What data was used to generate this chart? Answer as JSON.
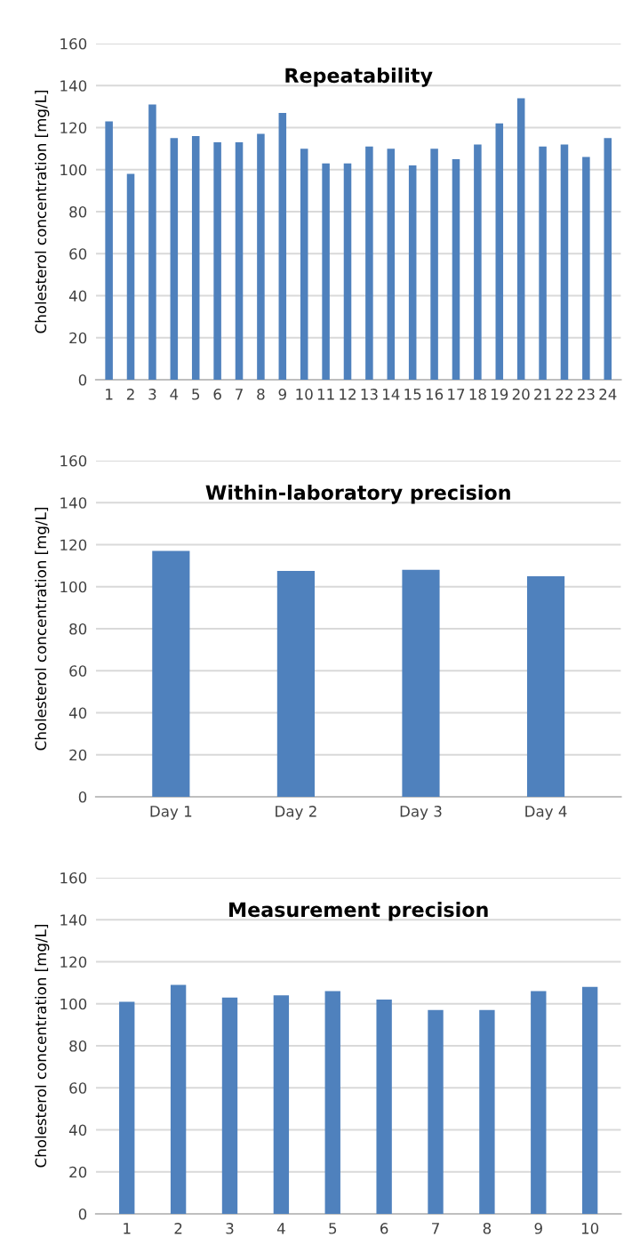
{
  "chart_data": [
    {
      "type": "bar",
      "title": "Repeatability",
      "ylabel": "Cholesterol concentration [mg/L]",
      "categories": [
        "1",
        "2",
        "3",
        "4",
        "5",
        "6",
        "7",
        "8",
        "9",
        "10",
        "11",
        "12",
        "13",
        "14",
        "15",
        "16",
        "17",
        "18",
        "19",
        "20",
        "21",
        "22",
        "23",
        "24"
      ],
      "values": [
        123,
        98,
        131,
        115,
        116,
        113,
        113,
        117,
        127,
        110,
        103,
        103,
        111,
        110,
        102,
        110,
        105,
        112,
        122,
        134,
        111,
        112,
        106,
        115
      ],
      "color": "#4f81bd",
      "ylim": [
        0,
        160
      ],
      "yticks": [
        0,
        20,
        40,
        60,
        80,
        100,
        120,
        140,
        160
      ],
      "grid": "y"
    },
    {
      "type": "bar",
      "title": "Within-laboratory precision",
      "ylabel": "Cholesterol concentration [mg/L]",
      "categories": [
        "Day 1",
        "Day 2",
        "Day 3",
        "Day 4"
      ],
      "values": [
        117,
        107.5,
        108,
        105
      ],
      "color": "#4f81bd",
      "ylim": [
        0,
        160
      ],
      "yticks": [
        0,
        20,
        40,
        60,
        80,
        100,
        120,
        140,
        160
      ],
      "grid": "y"
    },
    {
      "type": "bar",
      "title": "Measurement precision",
      "ylabel": "Cholesterol concentration [mg/L]",
      "categories": [
        "1",
        "2",
        "3",
        "4",
        "5",
        "6",
        "7",
        "8",
        "9",
        "10"
      ],
      "values": [
        101,
        109,
        103,
        104,
        106,
        102,
        97,
        97,
        106,
        108
      ],
      "color": "#4f81bd",
      "ylim": [
        0,
        160
      ],
      "yticks": [
        0,
        20,
        40,
        60,
        80,
        100,
        120,
        140,
        160
      ],
      "grid": "y"
    }
  ]
}
